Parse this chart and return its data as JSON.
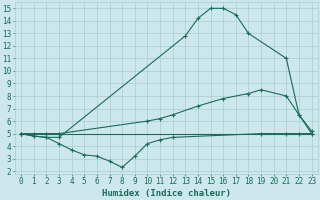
{
  "line1_x": [
    0,
    1,
    2,
    3,
    13,
    14,
    15,
    16,
    17,
    18,
    21,
    22,
    23
  ],
  "line1_y": [
    5,
    4.8,
    4.7,
    4.7,
    12.8,
    14.2,
    15,
    15,
    14.5,
    13,
    11,
    6.5,
    5
  ],
  "line2_x": [
    0,
    1,
    2,
    3,
    10,
    11,
    12,
    14,
    16,
    18,
    19,
    21,
    22,
    23
  ],
  "line2_y": [
    5,
    5,
    5,
    5,
    6.0,
    6.2,
    6.5,
    7.2,
    7.8,
    8.2,
    8.5,
    8.0,
    6.5,
    5.2
  ],
  "line3_x": [
    0,
    1,
    2,
    3,
    4,
    5,
    6,
    7,
    8,
    9,
    10,
    11,
    12,
    19,
    21,
    22,
    23
  ],
  "line3_y": [
    5,
    4.8,
    4.7,
    4.2,
    3.7,
    3.3,
    3.2,
    2.8,
    2.3,
    3.2,
    4.2,
    4.5,
    4.7,
    5,
    5,
    5,
    5
  ],
  "line4_x": [
    0,
    23
  ],
  "line4_y": [
    5,
    5
  ],
  "color": "#1a6b5a",
  "bg_color": "#cce8ec",
  "grid_color": "#aacccc",
  "xlabel": "Humidex (Indice chaleur)",
  "xlim": [
    -0.5,
    23.5
  ],
  "ylim": [
    1.8,
    15.5
  ],
  "xticks": [
    0,
    1,
    2,
    3,
    4,
    5,
    6,
    7,
    8,
    9,
    10,
    11,
    12,
    13,
    14,
    15,
    16,
    17,
    18,
    19,
    20,
    21,
    22,
    23
  ],
  "yticks": [
    2,
    3,
    4,
    5,
    6,
    7,
    8,
    9,
    10,
    11,
    12,
    13,
    14,
    15
  ],
  "xlabel_fontsize": 6.5,
  "tick_fontsize": 5.5
}
